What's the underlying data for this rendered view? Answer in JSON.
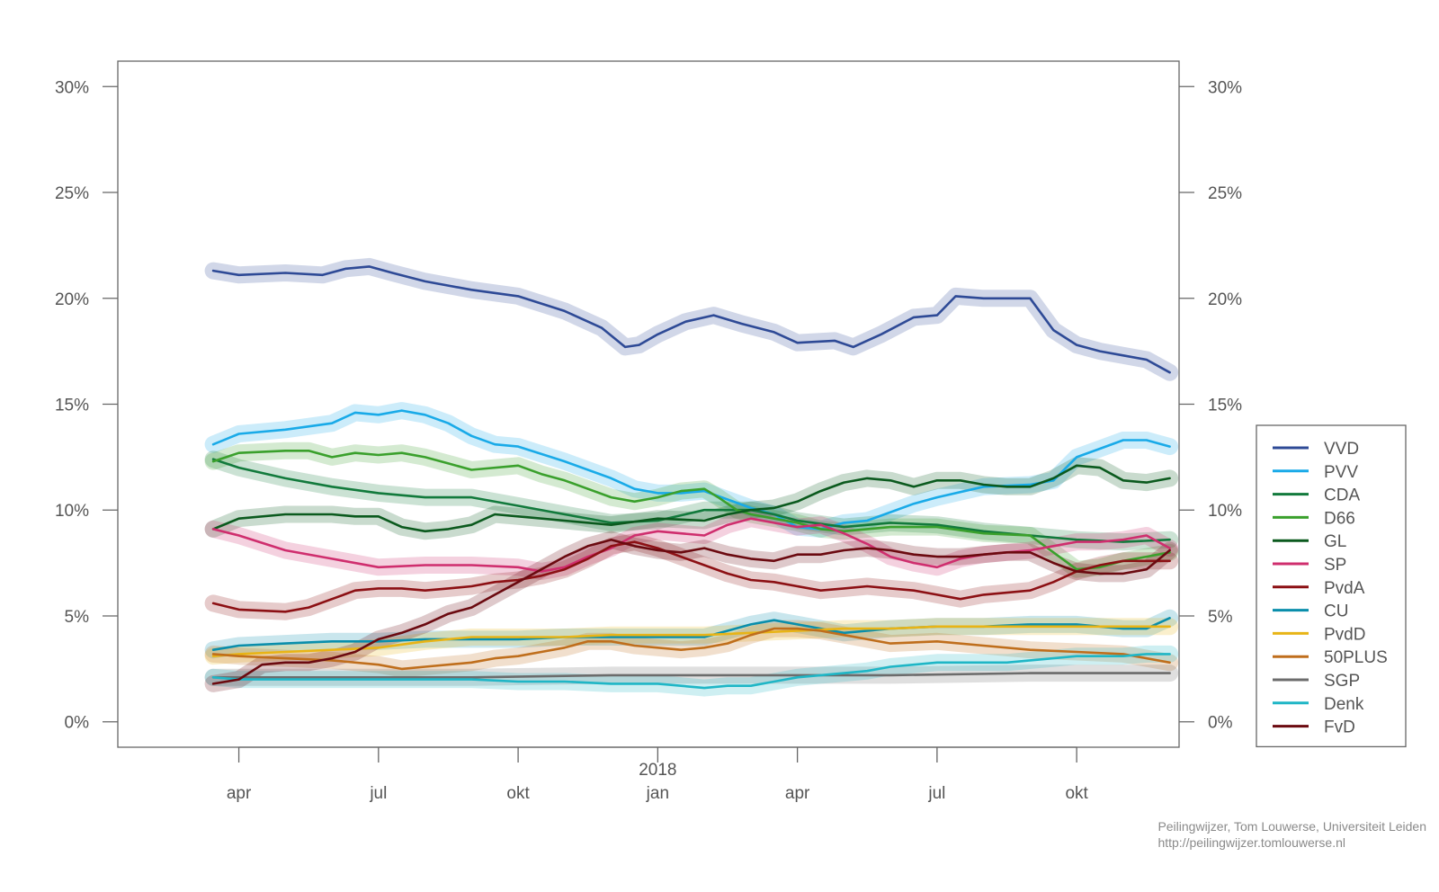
{
  "chart_data": {
    "type": "line",
    "ylim": [
      -1.2,
      31.2
    ],
    "yticks": [
      {
        "v": 0,
        "label": "0%"
      },
      {
        "v": 5,
        "label": "5%"
      },
      {
        "v": 10,
        "label": "10%"
      },
      {
        "v": 15,
        "label": "15%"
      },
      {
        "v": 20,
        "label": "20%"
      },
      {
        "v": 25,
        "label": "25%"
      },
      {
        "v": 30,
        "label": "30%"
      }
    ],
    "xlim": [
      -1.6,
      21.2
    ],
    "xticks": [
      {
        "v": 1,
        "label": "apr"
      },
      {
        "v": 4,
        "label": "jul"
      },
      {
        "v": 7,
        "label": "okt"
      },
      {
        "v": 10,
        "label": "jan",
        "year": "2018"
      },
      {
        "v": 13,
        "label": "apr"
      },
      {
        "v": 16,
        "label": "jul"
      },
      {
        "v": 19,
        "label": "okt"
      }
    ],
    "x_unit": "months since 2017-03-01",
    "legend_position": "right",
    "series": [
      {
        "name": "VVD",
        "color": "#2e4a96",
        "x": [
          0.45,
          1.0,
          2.0,
          2.8,
          3.3,
          3.8,
          4.3,
          5.0,
          6.0,
          7.0,
          8.0,
          8.8,
          9.3,
          9.6,
          10.0,
          10.6,
          11.2,
          11.8,
          12.5,
          13.0,
          13.8,
          14.2,
          14.8,
          15.5,
          16.0,
          16.4,
          17.0,
          17.5,
          18.0,
          18.5,
          19.0,
          19.5,
          20.0,
          20.5,
          21.0
        ],
        "y": [
          21.3,
          21.1,
          21.2,
          21.1,
          21.4,
          21.5,
          21.2,
          20.8,
          20.4,
          20.1,
          19.4,
          18.6,
          17.7,
          17.8,
          18.3,
          18.9,
          19.2,
          18.8,
          18.4,
          17.9,
          18.0,
          17.7,
          18.3,
          19.1,
          19.2,
          20.1,
          20.0,
          20.0,
          20.0,
          18.5,
          17.8,
          17.5,
          17.3,
          17.1,
          16.5
        ]
      },
      {
        "name": "PVV",
        "color": "#19aae8",
        "x": [
          0.45,
          1.0,
          2.0,
          3.0,
          3.5,
          4.0,
          4.5,
          5.0,
          5.5,
          6.0,
          6.5,
          7.0,
          8.0,
          9.0,
          9.5,
          10.0,
          10.5,
          11.0,
          11.5,
          12.0,
          12.5,
          13.0,
          13.5,
          14.0,
          14.5,
          15.0,
          15.5,
          16.0,
          17.0,
          18.0,
          18.5,
          19.0,
          19.5,
          20.0,
          20.5,
          21.0
        ],
        "y": [
          13.1,
          13.6,
          13.8,
          14.1,
          14.6,
          14.5,
          14.7,
          14.5,
          14.1,
          13.5,
          13.1,
          13.0,
          12.3,
          11.5,
          11.0,
          10.8,
          10.8,
          10.9,
          10.5,
          10.1,
          9.8,
          9.2,
          9.1,
          9.4,
          9.5,
          9.9,
          10.3,
          10.6,
          11.1,
          11.2,
          11.4,
          12.5,
          12.9,
          13.3,
          13.3,
          13.0
        ]
      },
      {
        "name": "CDA",
        "color": "#127a3c",
        "x": [
          0.45,
          1.0,
          2.0,
          3.0,
          4.0,
          5.0,
          6.0,
          7.0,
          8.0,
          9.0,
          10.0,
          11.0,
          12.0,
          12.5,
          13.0,
          14.0,
          15.0,
          16.0,
          17.0,
          18.0,
          19.0,
          20.0,
          21.0
        ],
        "y": [
          12.4,
          12.0,
          11.5,
          11.1,
          10.8,
          10.6,
          10.6,
          10.2,
          9.8,
          9.4,
          9.5,
          10.0,
          10.0,
          9.8,
          9.5,
          9.2,
          9.4,
          9.3,
          9.0,
          8.8,
          8.6,
          8.5,
          8.6
        ]
      },
      {
        "name": "D66",
        "color": "#3aa02c",
        "x": [
          0.45,
          1.0,
          2.0,
          2.5,
          3.0,
          3.5,
          4.0,
          4.5,
          5.0,
          5.5,
          6.0,
          7.0,
          7.5,
          8.0,
          8.5,
          9.0,
          9.5,
          10.0,
          10.5,
          11.0,
          11.3,
          11.7,
          12.0,
          12.5,
          13.0,
          13.5,
          14.0,
          14.5,
          15.0,
          15.5,
          16.0,
          17.0,
          18.0,
          18.5,
          19.0,
          19.5,
          20.0,
          20.5,
          21.0
        ],
        "y": [
          12.3,
          12.7,
          12.8,
          12.8,
          12.5,
          12.7,
          12.6,
          12.7,
          12.5,
          12.2,
          11.9,
          12.1,
          11.7,
          11.4,
          11.0,
          10.6,
          10.4,
          10.6,
          10.9,
          11.0,
          10.6,
          10.0,
          9.8,
          9.6,
          9.4,
          9.1,
          9.0,
          9.1,
          9.2,
          9.2,
          9.2,
          8.9,
          8.8,
          8.0,
          7.2,
          7.3,
          7.6,
          7.8,
          8.0
        ]
      },
      {
        "name": "GL",
        "color": "#0b5a1e",
        "x": [
          0.45,
          1.0,
          2.0,
          3.0,
          3.5,
          4.0,
          4.5,
          5.0,
          5.5,
          6.0,
          6.5,
          7.0,
          8.0,
          9.0,
          10.0,
          11.0,
          11.5,
          12.0,
          12.5,
          13.0,
          13.5,
          14.0,
          14.5,
          15.0,
          15.5,
          16.0,
          16.5,
          17.0,
          17.5,
          18.0,
          18.5,
          19.0,
          19.5,
          20.0,
          20.5,
          21.0
        ],
        "y": [
          9.1,
          9.6,
          9.8,
          9.8,
          9.7,
          9.7,
          9.2,
          9.0,
          9.1,
          9.3,
          9.8,
          9.7,
          9.5,
          9.3,
          9.6,
          9.5,
          9.8,
          10.0,
          10.1,
          10.4,
          10.9,
          11.3,
          11.5,
          11.4,
          11.1,
          11.4,
          11.4,
          11.2,
          11.1,
          11.1,
          11.5,
          12.1,
          12.0,
          11.4,
          11.3,
          11.5
        ]
      },
      {
        "name": "SP",
        "color": "#cf2e6e",
        "x": [
          0.45,
          1.0,
          2.0,
          3.0,
          4.0,
          5.0,
          6.0,
          7.0,
          7.5,
          8.0,
          8.5,
          9.0,
          9.5,
          10.0,
          10.5,
          11.0,
          11.5,
          12.0,
          12.5,
          13.0,
          13.5,
          14.0,
          14.5,
          15.0,
          15.5,
          16.0,
          16.5,
          17.0,
          17.5,
          18.0,
          18.5,
          19.0,
          19.5,
          20.0,
          20.5,
          21.0
        ],
        "y": [
          9.1,
          8.8,
          8.1,
          7.7,
          7.3,
          7.4,
          7.4,
          7.3,
          7.1,
          7.3,
          7.8,
          8.2,
          8.8,
          9.0,
          8.9,
          8.8,
          9.3,
          9.6,
          9.4,
          9.2,
          9.3,
          8.9,
          8.4,
          7.8,
          7.5,
          7.3,
          7.7,
          7.9,
          8.0,
          8.1,
          8.3,
          8.5,
          8.5,
          8.6,
          8.8,
          8.2
        ]
      },
      {
        "name": "PvdA",
        "color": "#8c1014",
        "x": [
          0.45,
          1.0,
          2.0,
          2.5,
          3.0,
          3.5,
          4.0,
          4.5,
          5.0,
          5.5,
          6.0,
          6.5,
          7.0,
          7.5,
          8.0,
          8.5,
          9.0,
          9.5,
          10.0,
          10.5,
          11.0,
          11.5,
          12.0,
          12.5,
          13.0,
          13.5,
          14.0,
          14.5,
          15.0,
          15.5,
          16.0,
          16.5,
          17.0,
          17.5,
          18.0,
          18.5,
          19.0,
          19.5,
          20.0,
          20.5,
          21.0
        ],
        "y": [
          5.6,
          5.3,
          5.2,
          5.4,
          5.8,
          6.2,
          6.3,
          6.3,
          6.2,
          6.3,
          6.4,
          6.6,
          6.7,
          6.9,
          7.2,
          7.7,
          8.3,
          8.5,
          8.2,
          7.8,
          7.4,
          7.0,
          6.7,
          6.6,
          6.4,
          6.2,
          6.3,
          6.4,
          6.3,
          6.2,
          6.0,
          5.8,
          6.0,
          6.1,
          6.2,
          6.6,
          7.1,
          7.4,
          7.6,
          7.6,
          7.6
        ]
      },
      {
        "name": "CU",
        "color": "#0a8eab",
        "x": [
          0.45,
          1.0,
          2.0,
          3.0,
          4.0,
          5.0,
          6.0,
          7.0,
          8.0,
          9.0,
          10.0,
          11.0,
          11.5,
          12.0,
          12.5,
          13.0,
          13.5,
          14.0,
          14.5,
          15.0,
          16.0,
          17.0,
          18.0,
          19.0,
          19.5,
          20.0,
          20.5,
          21.0
        ],
        "y": [
          3.4,
          3.6,
          3.7,
          3.8,
          3.8,
          3.9,
          3.9,
          3.9,
          4.0,
          4.0,
          4.0,
          4.0,
          4.3,
          4.6,
          4.8,
          4.6,
          4.4,
          4.2,
          4.3,
          4.4,
          4.5,
          4.5,
          4.6,
          4.6,
          4.5,
          4.4,
          4.4,
          4.9
        ]
      },
      {
        "name": "PvdD",
        "color": "#e8b416",
        "x": [
          0.45,
          1.0,
          2.0,
          3.0,
          4.0,
          5.0,
          6.0,
          7.0,
          8.0,
          9.0,
          10.0,
          11.0,
          12.0,
          13.0,
          14.0,
          15.0,
          16.0,
          17.0,
          18.0,
          19.0,
          20.0,
          21.0
        ],
        "y": [
          3.1,
          3.2,
          3.3,
          3.4,
          3.5,
          3.8,
          4.0,
          4.0,
          4.0,
          4.1,
          4.1,
          4.1,
          4.2,
          4.3,
          4.4,
          4.4,
          4.5,
          4.5,
          4.5,
          4.5,
          4.5,
          4.5
        ]
      },
      {
        "name": "50PLUS",
        "color": "#bf6e1c",
        "x": [
          0.45,
          1.0,
          2.0,
          3.0,
          4.0,
          4.5,
          5.0,
          6.0,
          6.5,
          7.0,
          7.5,
          8.0,
          8.5,
          9.0,
          9.5,
          10.0,
          10.5,
          11.0,
          11.5,
          12.0,
          12.5,
          13.0,
          13.5,
          14.0,
          14.5,
          15.0,
          16.0,
          17.0,
          18.0,
          19.0,
          20.0,
          20.5,
          21.0
        ],
        "y": [
          3.2,
          3.1,
          3.0,
          2.9,
          2.7,
          2.5,
          2.6,
          2.8,
          3.0,
          3.1,
          3.3,
          3.5,
          3.8,
          3.8,
          3.6,
          3.5,
          3.4,
          3.5,
          3.7,
          4.1,
          4.4,
          4.4,
          4.3,
          4.1,
          3.9,
          3.7,
          3.8,
          3.6,
          3.4,
          3.3,
          3.2,
          3.0,
          2.8
        ]
      },
      {
        "name": "SGP",
        "color": "#6c6c6c",
        "x": [
          0.45,
          3.0,
          6.0,
          9.0,
          12.0,
          15.0,
          18.0,
          21.0
        ],
        "y": [
          2.1,
          2.1,
          2.1,
          2.2,
          2.2,
          2.2,
          2.3,
          2.3
        ]
      },
      {
        "name": "Denk",
        "color": "#1fb6c6",
        "x": [
          0.45,
          1.0,
          2.0,
          3.0,
          4.0,
          5.0,
          6.0,
          7.0,
          8.0,
          9.0,
          10.0,
          10.5,
          11.0,
          11.5,
          12.0,
          12.5,
          13.0,
          13.5,
          14.0,
          14.5,
          15.0,
          15.5,
          16.0,
          16.5,
          17.0,
          17.5,
          18.0,
          18.5,
          19.0,
          19.5,
          20.0,
          20.5,
          21.0
        ],
        "y": [
          2.1,
          2.0,
          2.0,
          2.0,
          2.0,
          2.0,
          2.0,
          1.9,
          1.9,
          1.8,
          1.8,
          1.7,
          1.6,
          1.7,
          1.7,
          1.9,
          2.1,
          2.2,
          2.3,
          2.4,
          2.6,
          2.7,
          2.8,
          2.8,
          2.8,
          2.8,
          2.9,
          3.0,
          3.1,
          3.1,
          3.1,
          3.2,
          3.2
        ]
      },
      {
        "name": "FvD",
        "color": "#6b0a10",
        "x": [
          0.45,
          1.0,
          1.5,
          2.0,
          2.5,
          3.0,
          3.5,
          4.0,
          4.5,
          5.0,
          5.5,
          6.0,
          6.5,
          7.0,
          7.5,
          8.0,
          8.5,
          9.0,
          9.5,
          10.0,
          10.5,
          11.0,
          11.5,
          12.0,
          12.5,
          13.0,
          13.5,
          14.0,
          14.5,
          15.0,
          15.5,
          16.0,
          16.5,
          17.0,
          17.5,
          18.0,
          18.5,
          19.0,
          19.5,
          20.0,
          20.5,
          21.0
        ],
        "y": [
          1.8,
          2.0,
          2.7,
          2.8,
          2.8,
          3.0,
          3.3,
          3.9,
          4.2,
          4.6,
          5.1,
          5.4,
          6.0,
          6.6,
          7.2,
          7.8,
          8.3,
          8.6,
          8.3,
          8.1,
          8.0,
          8.2,
          7.9,
          7.7,
          7.6,
          7.9,
          7.9,
          8.1,
          8.2,
          8.1,
          7.9,
          7.8,
          7.8,
          7.9,
          8.0,
          8.0,
          7.5,
          7.1,
          7.0,
          7.0,
          7.2,
          8.1
        ]
      }
    ]
  },
  "credit": {
    "line1": "Peilingwijzer, Tom Louwerse, Universiteit Leiden",
    "line2": "http://peilingwijzer.tomlouwerse.nl"
  }
}
